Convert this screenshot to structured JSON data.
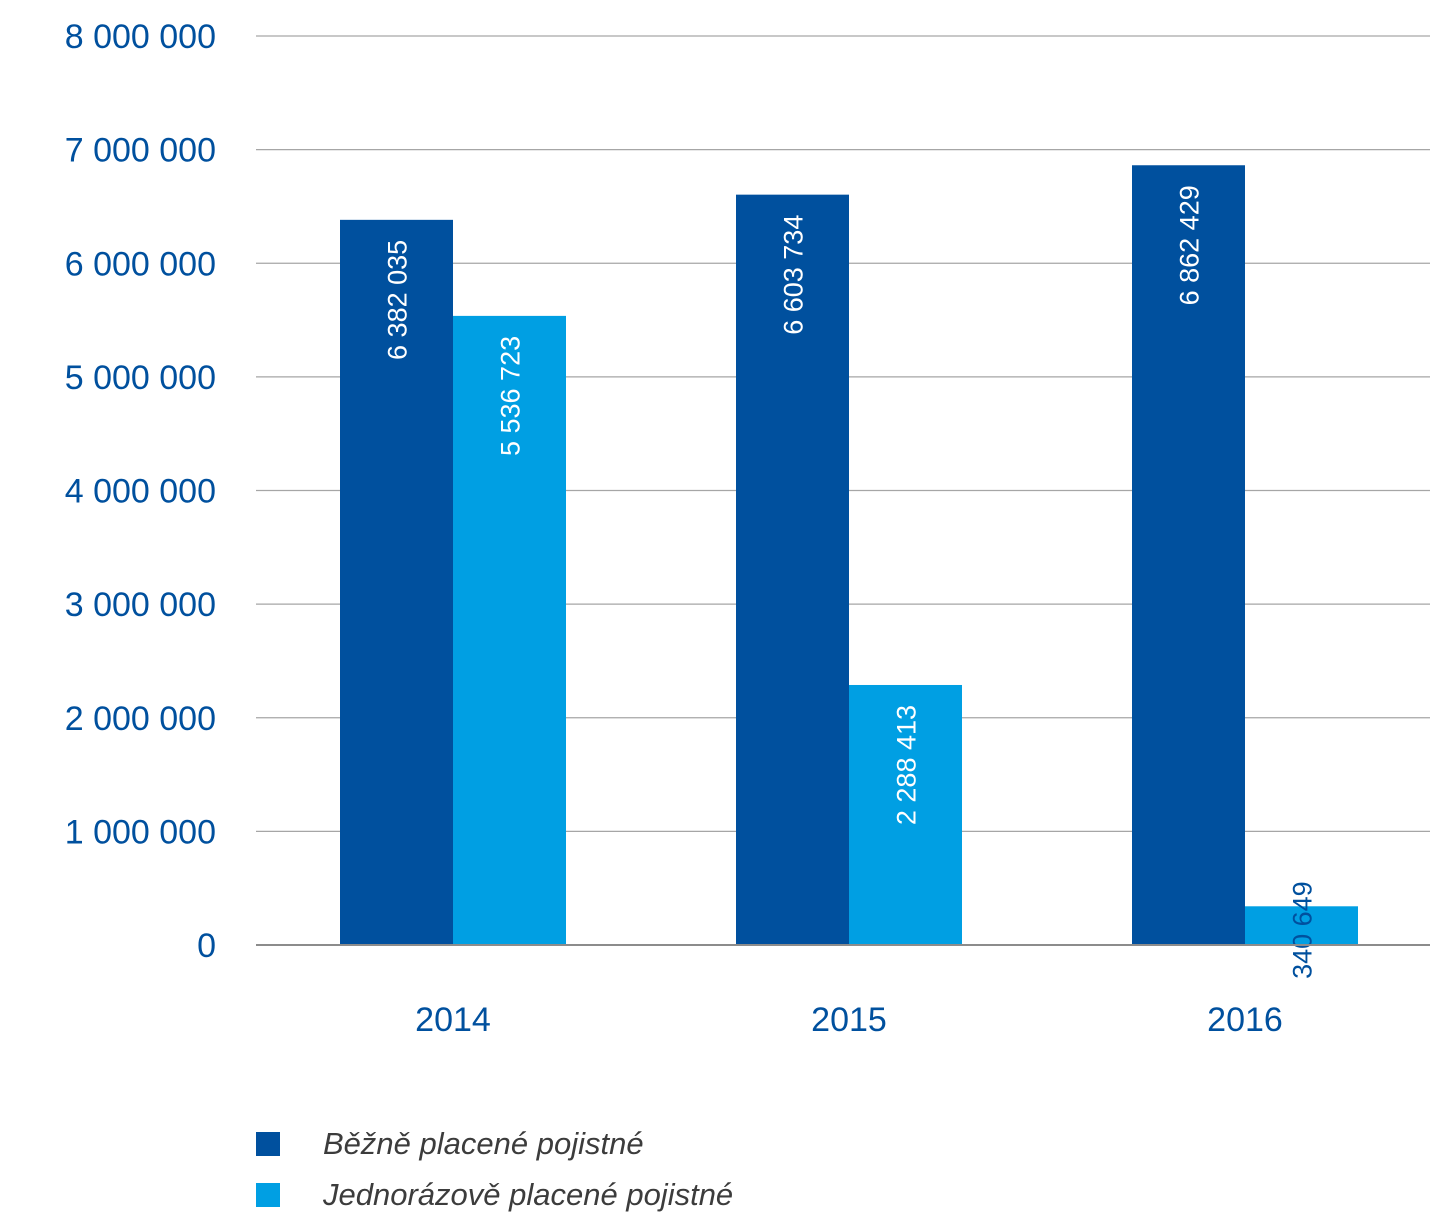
{
  "colors": {
    "series_1": "#00509e",
    "series_2": "#009fe3",
    "axis_text": "#00509e",
    "grid": "#a6a6a6",
    "bar_label_on_dark": "#ffffff",
    "legend_text": "#3c3c3c"
  },
  "chart_data": {
    "type": "bar",
    "categories": [
      "2014",
      "2015",
      "2016"
    ],
    "series": [
      {
        "name": "Běžně placené pojistné",
        "values": [
          6382035,
          6603734,
          6862429
        ],
        "labels": [
          "6 382 035",
          "6 603 734",
          "6 862 429"
        ]
      },
      {
        "name": "Jednorázově placené pojistné",
        "values": [
          5536723,
          2288413,
          340649
        ],
        "labels": [
          "5 536 723",
          "2 288 413",
          "340 649"
        ]
      }
    ],
    "ylim": [
      0,
      8000000
    ],
    "yticks": [
      0,
      1000000,
      2000000,
      3000000,
      4000000,
      5000000,
      6000000,
      7000000,
      8000000
    ],
    "ytick_labels": [
      "0",
      "1 000 000",
      "2 000 000",
      "3 000 000",
      "4 000 000",
      "5 000 000",
      "6 000 000",
      "7 000 000",
      "8 000 000"
    ],
    "grid": true,
    "legend_position": "bottom-left",
    "data_labels": "vertical"
  },
  "legend": {
    "items": [
      {
        "label": "Běžně placené pojistné"
      },
      {
        "label": "Jednorázově placené pojistné"
      }
    ]
  }
}
